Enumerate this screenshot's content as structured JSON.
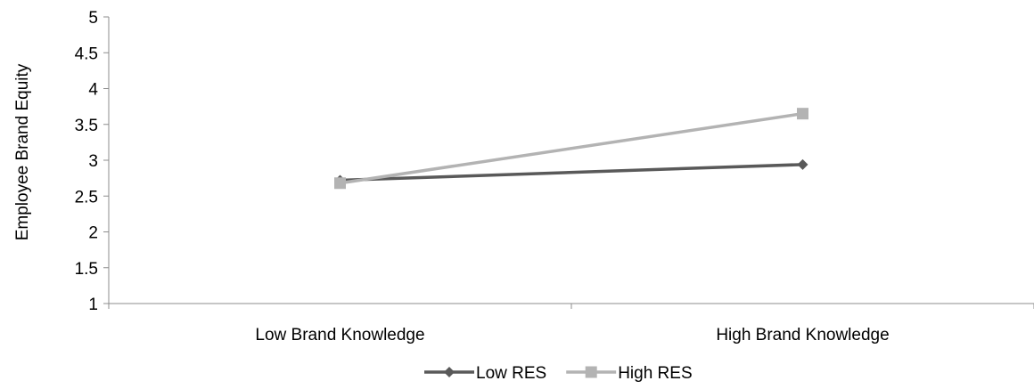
{
  "chart_data": {
    "type": "line",
    "categories": [
      "Low Brand Knowledge",
      "High Brand Knowledge"
    ],
    "series": [
      {
        "name": "Low RES",
        "values": [
          2.72,
          2.94
        ],
        "color": "#595959",
        "marker": "diamond"
      },
      {
        "name": "High RES",
        "values": [
          2.68,
          3.65
        ],
        "color": "#b3b3b3",
        "marker": "square"
      }
    ],
    "ylabel": "Employee Brand Equity",
    "xlabel": "",
    "ylim": [
      1,
      5
    ],
    "yticks": [
      "1",
      "1.5",
      "2",
      "2.5",
      "3",
      "3.5",
      "4",
      "4.5",
      "5"
    ],
    "grid": false,
    "legend_position": "bottom"
  }
}
